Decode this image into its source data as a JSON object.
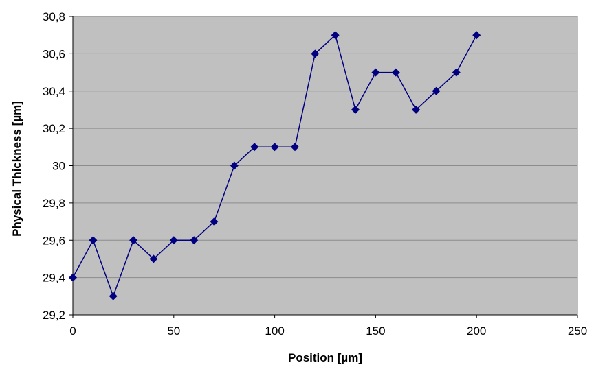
{
  "chart_data": {
    "type": "line",
    "title": "",
    "xlabel": "Position [µm]",
    "ylabel": "Physical Thickness [µm]",
    "xlim": [
      0,
      250
    ],
    "ylim": [
      29.2,
      30.8
    ],
    "x_ticks": [
      0,
      50,
      100,
      150,
      200,
      250
    ],
    "x_tick_labels": [
      "0",
      "50",
      "100",
      "150",
      "200",
      "250"
    ],
    "y_ticks": [
      29.2,
      29.4,
      29.6,
      29.8,
      30.0,
      30.2,
      30.4,
      30.6,
      30.8
    ],
    "y_tick_labels": [
      "29,2",
      "29,4",
      "29,6",
      "29,8",
      "30",
      "30,2",
      "30,4",
      "30,6",
      "30,8"
    ],
    "grid": "horizontal",
    "legend": "none",
    "colors": {
      "plot_background": "#c0c0c0",
      "gridline": "#8c8c8c",
      "series": "#000080",
      "frame": "#808080"
    },
    "series": [
      {
        "marker": "diamond",
        "x": [
          0,
          10,
          20,
          30,
          40,
          50,
          60,
          70,
          80,
          90,
          100,
          110,
          120,
          130,
          140,
          150,
          160,
          170,
          180,
          190,
          200
        ],
        "y": [
          29.4,
          29.6,
          29.3,
          29.6,
          29.5,
          29.6,
          29.6,
          29.7,
          30.0,
          30.1,
          30.1,
          30.1,
          30.6,
          30.7,
          30.3,
          30.5,
          30.5,
          30.3,
          30.4,
          30.5,
          30.7
        ]
      }
    ]
  }
}
